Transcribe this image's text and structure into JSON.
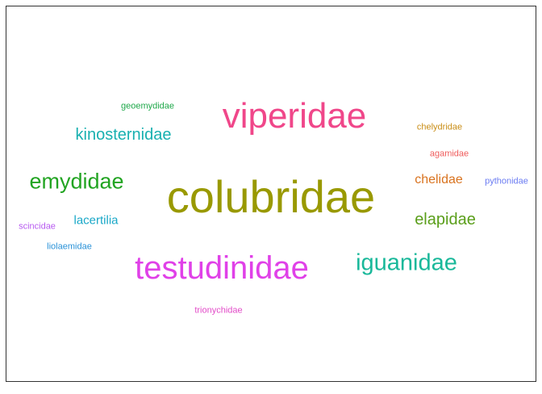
{
  "chart_data": {
    "type": "wordcloud",
    "title": "",
    "words": [
      {
        "text": "colubridae",
        "color": "#999900",
        "rank": 1
      },
      {
        "text": "viperidae",
        "color": "#f0478a",
        "rank": 2
      },
      {
        "text": "testudinidae",
        "color": "#e041e8",
        "rank": 3
      },
      {
        "text": "iguanidae",
        "color": "#19b89a",
        "rank": 4
      },
      {
        "text": "emydidae",
        "color": "#22a422",
        "rank": 5
      },
      {
        "text": "kinosternidae",
        "color": "#18b0b0",
        "rank": 6
      },
      {
        "text": "elapidae",
        "color": "#5a9e1a",
        "rank": 7
      },
      {
        "text": "chelidae",
        "color": "#d9731f",
        "rank": 8
      },
      {
        "text": "lacertilia",
        "color": "#1aa8c8",
        "rank": 9
      },
      {
        "text": "geoemydidae",
        "color": "#1fa84a",
        "rank": 10
      },
      {
        "text": "chelydridae",
        "color": "#c98d16",
        "rank": 11
      },
      {
        "text": "agamidae",
        "color": "#ef5b5b",
        "rank": 12
      },
      {
        "text": "pythonidae",
        "color": "#6b7cf2",
        "rank": 13
      },
      {
        "text": "scincidae",
        "color": "#b75af0",
        "rank": 14
      },
      {
        "text": "liolaemidae",
        "color": "#2a92d8",
        "rank": 15
      },
      {
        "text": "trionychidae",
        "color": "#e24bc8",
        "rank": 16
      }
    ]
  }
}
